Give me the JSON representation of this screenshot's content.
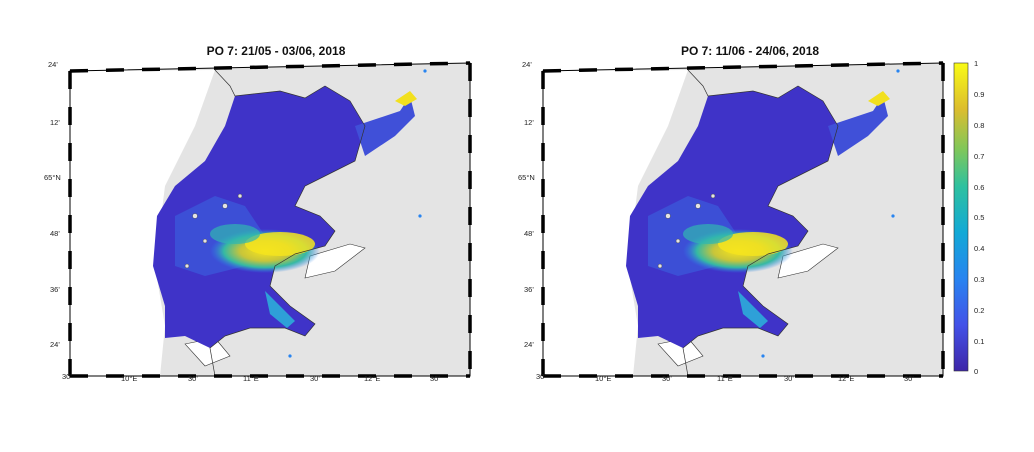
{
  "figure": {
    "panels": [
      {
        "title": "PO 7: 21/05 - 03/06, 2018"
      },
      {
        "title": "PO 7: 11/06 - 24/06, 2018"
      }
    ],
    "lat_ticks": [
      "24'",
      "12'",
      "65°N",
      "48'",
      "36'",
      "24'"
    ],
    "lon_ticks": [
      "30'",
      "10°E",
      "30'",
      "11°E",
      "30'",
      "12°E",
      "30'"
    ],
    "colorbar": {
      "ticks": [
        "1",
        "0.9",
        "0.8",
        "0.7",
        "0.6",
        "0.5",
        "0.4",
        "0.3",
        "0.2",
        "0.1",
        "0"
      ],
      "range": [
        0,
        1
      ],
      "colormap": "parula"
    },
    "colors": {
      "land": "#e4e4e4",
      "low": "#3d2cc9",
      "high": "#f2e71c"
    }
  }
}
